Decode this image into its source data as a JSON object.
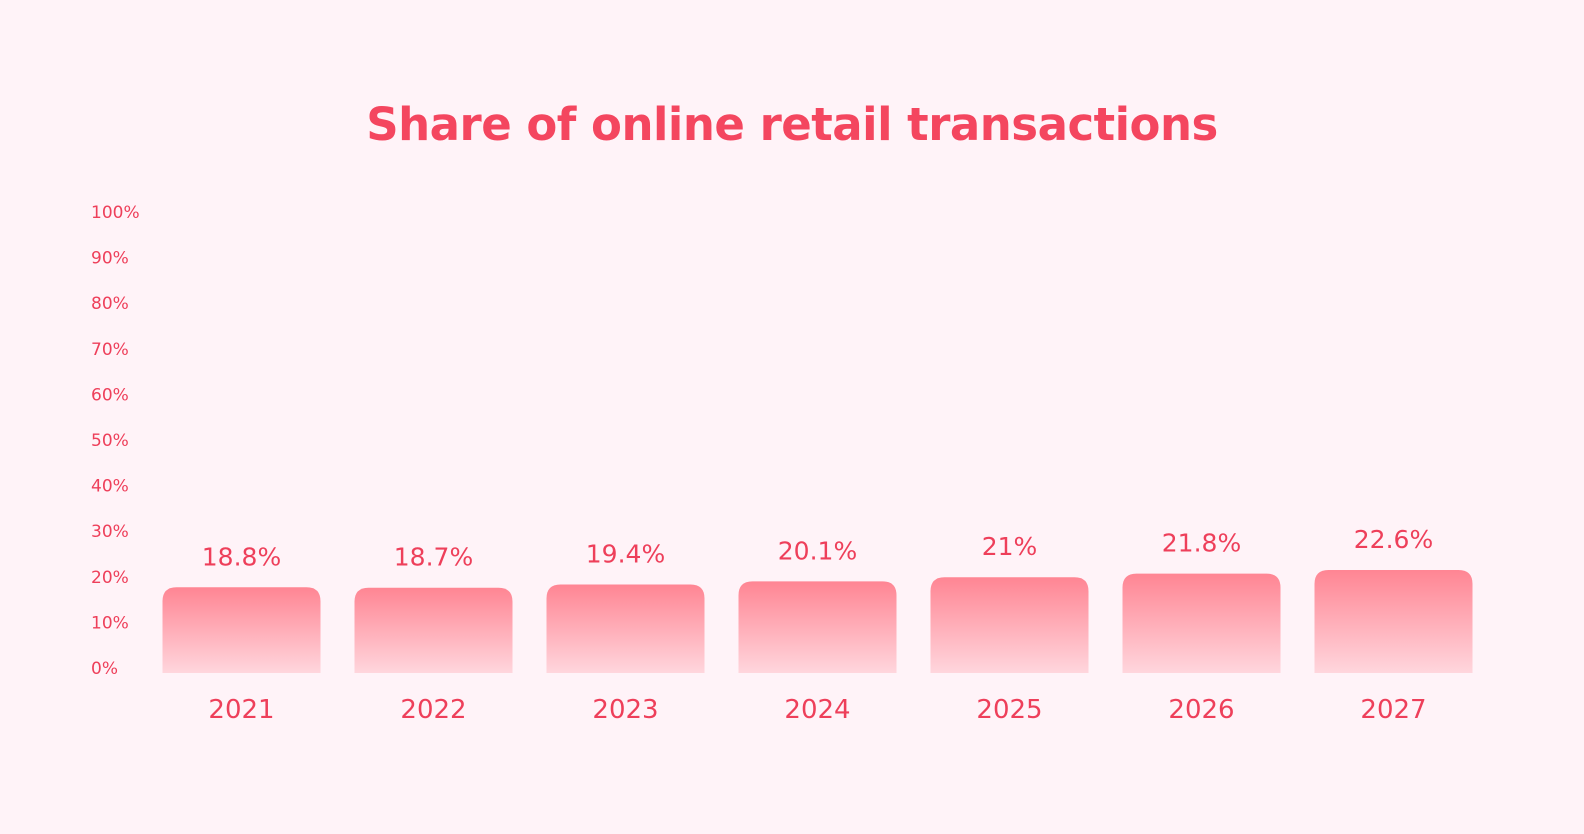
{
  "chart_data": {
    "type": "bar",
    "title": "Share of online retail transactions",
    "xlabel": "",
    "ylabel": "",
    "categories": [
      "2021",
      "2022",
      "2023",
      "2024",
      "2025",
      "2026",
      "2027"
    ],
    "values": [
      18.8,
      18.7,
      19.4,
      20.1,
      21,
      21.8,
      22.6
    ],
    "data_labels": [
      "18.8%",
      "18.7%",
      "19.4%",
      "20.1%",
      "21%",
      "21.8%",
      "22.6%"
    ],
    "ylim": [
      0,
      100
    ],
    "yticks": [
      0,
      10,
      20,
      30,
      40,
      50,
      60,
      70,
      80,
      90,
      100
    ],
    "ytick_labels": [
      "0%",
      "10%",
      "20%",
      "30%",
      "40%",
      "50%",
      "60%",
      "70%",
      "80%",
      "90%",
      "100%"
    ],
    "grid": false,
    "legend": "none",
    "colors": {
      "bar_top": "#ff8593",
      "bar_bottom": "#ffd6dd",
      "text": "#ee3f5a",
      "title": "#f4465f",
      "background": "#fff3f8"
    }
  }
}
